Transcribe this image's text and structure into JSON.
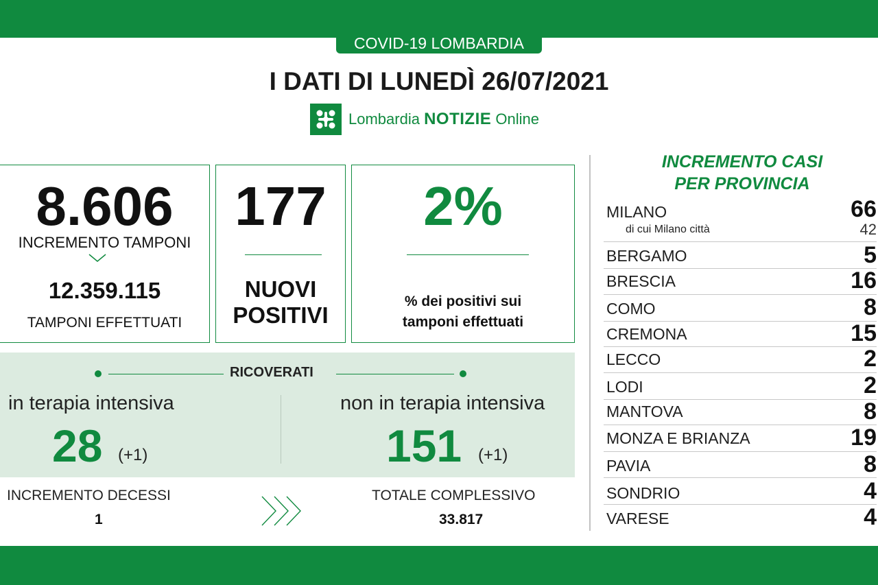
{
  "header": {
    "tag": "COVID-19 LOMBARDIA",
    "title": "I DATI DI LUNEDÌ 26/07/2021",
    "logo_regular": "Lombardia ",
    "logo_bold": "NOTIZIE",
    "logo_suffix": " Online"
  },
  "tamponi": {
    "increment": "8.606",
    "increment_label": "INCREMENTO TAMPONI",
    "total": "12.359.115",
    "total_label": "TAMPONI EFFETTUATI"
  },
  "positivi": {
    "value": "177",
    "label_line1": "NUOVI",
    "label_line2": "POSITIVI"
  },
  "percentuale": {
    "value": "2%",
    "label_line1": "% dei positivi sui",
    "label_line2": "tamponi effettuati"
  },
  "ricoverati": {
    "title": "RICOVERATI",
    "intensiva_label": "in terapia intensiva",
    "intensiva_value": "28",
    "intensiva_delta": "(+1)",
    "non_intensiva_label": "non in terapia intensiva",
    "non_intensiva_value": "151",
    "non_intensiva_delta": "(+1)"
  },
  "decessi": {
    "increment_label": "INCREMENTO DECESSI",
    "increment_value": "1",
    "total_label": "TOTALE COMPLESSIVO",
    "total_value": "33.817"
  },
  "province": {
    "title_line1": "INCREMENTO CASI",
    "title_line2": "PER PROVINCIA",
    "milano_city_label": "di cui Milano città",
    "milano_city_value": "42",
    "rows": [
      {
        "name": "MILANO",
        "value": "66"
      },
      {
        "name": "BERGAMO",
        "value": "5"
      },
      {
        "name": "BRESCIA",
        "value": "16"
      },
      {
        "name": "COMO",
        "value": "8"
      },
      {
        "name": "CREMONA",
        "value": "15"
      },
      {
        "name": "LECCO",
        "value": "2"
      },
      {
        "name": "LODI",
        "value": "2"
      },
      {
        "name": "MANTOVA",
        "value": "8"
      },
      {
        "name": "MONZA E BRIANZA",
        "value": "19"
      },
      {
        "name": "PAVIA",
        "value": "8"
      },
      {
        "name": "SONDRIO",
        "value": "4"
      },
      {
        "name": "VARESE",
        "value": "4"
      }
    ]
  },
  "colors": {
    "brand_green": "#108a3f",
    "ricoverati_bg": "#dcebe0"
  }
}
